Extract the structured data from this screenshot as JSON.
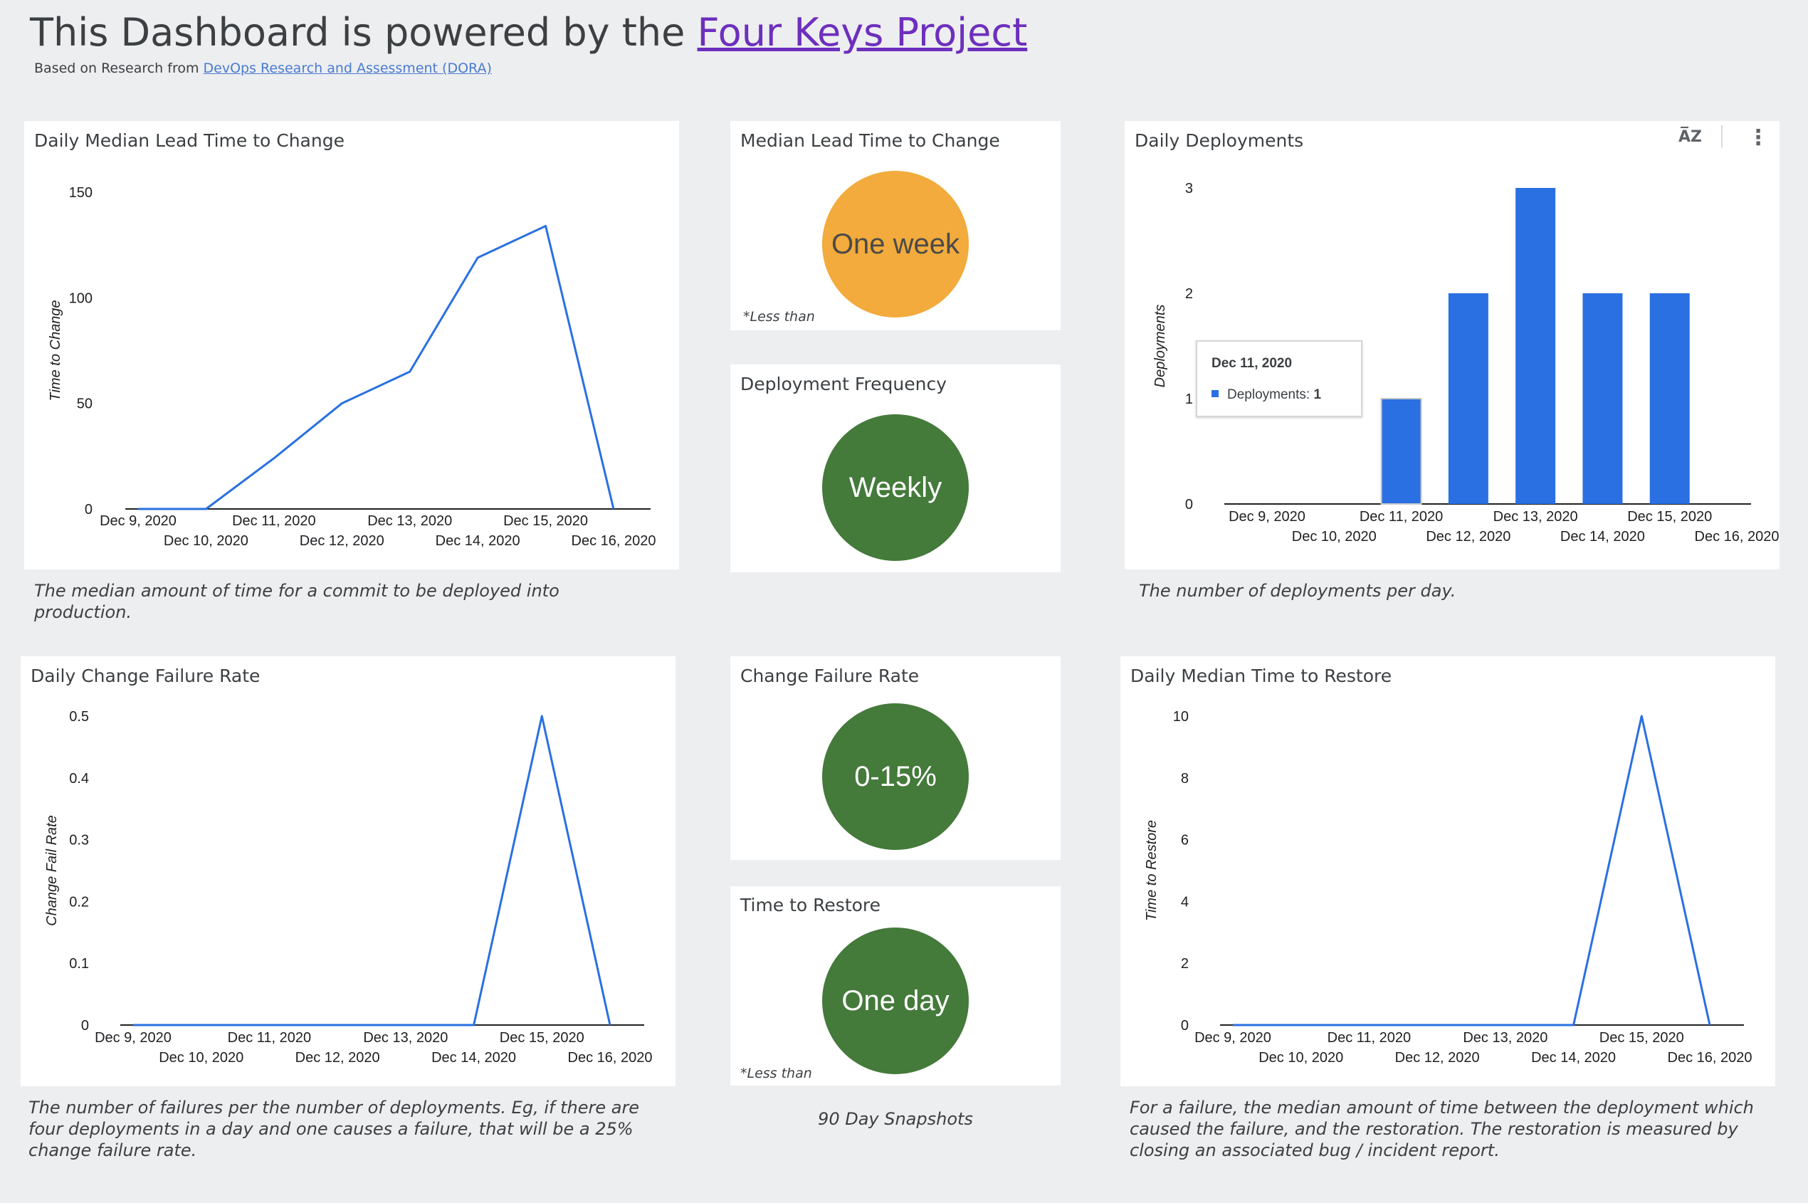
{
  "header": {
    "title_prefix": "This Dashboard is powered by the ",
    "title_link": "Four Keys Project",
    "subtitle_prefix": "Based on Research from ",
    "subtitle_link": "DevOps Research and Assessment (DORA)"
  },
  "colors": {
    "series": "#2a70e2",
    "orange": "#f2ab3c",
    "green": "#447a3a",
    "background": "#edeef0"
  },
  "scorecards": {
    "lead_time": {
      "title": "Median Lead Time to Change",
      "value": "One week",
      "note": "*Less than",
      "color": "#f2ab3c",
      "text_color": "#4a4a4a"
    },
    "deploy_freq": {
      "title": "Deployment Frequency",
      "value": "Weekly",
      "color": "#447a3a",
      "text_color": "#ffffff"
    },
    "cfr": {
      "title": "Change Failure Rate",
      "value": "0-15%",
      "color": "#447a3a",
      "text_color": "#ffffff"
    },
    "ttr": {
      "title": "Time to Restore",
      "value": "One day",
      "note": "*Less than",
      "color": "#447a3a",
      "text_color": "#ffffff"
    },
    "snapshot_label": "90 Day Snapshots"
  },
  "captions": {
    "lead_time": "The median amount of time for a commit to be deployed into production.",
    "deployments": "The number of deployments per day.",
    "cfr": "The number of failures per the number of deployments. Eg, if there are four deployments in a day and one causes a failure, that will be a 25% change failure rate.",
    "ttr": "For a failure, the median amount of time between the deployment which caused the failure, and the restoration. The restoration is measured by closing an associated bug / incident report."
  },
  "tooltip": {
    "date": "Dec 11, 2020",
    "label": "Deployments: ",
    "value": "1"
  },
  "icons": {
    "sort": "sort-az-icon",
    "menu": "more-vert-icon"
  },
  "chart_data": [
    {
      "id": "lead_time",
      "type": "line",
      "title": "Daily Median Lead Time to Change",
      "ylabel": "Time to Change",
      "xlabel": "",
      "x": [
        "Dec 9, 2020",
        "Dec 10, 2020",
        "Dec 11, 2020",
        "Dec 12, 2020",
        "Dec 13, 2020",
        "Dec 14, 2020",
        "Dec 15, 2020",
        "Dec 16, 2020"
      ],
      "values": [
        0,
        0,
        24,
        50,
        65,
        119,
        134,
        0
      ],
      "ylim": [
        0,
        150
      ],
      "yticks": [
        0,
        50,
        100,
        150
      ],
      "yticks_text": [
        "0",
        "50",
        "100",
        "150"
      ],
      "grid": false
    },
    {
      "id": "deployments",
      "type": "bar",
      "title": "Daily Deployments",
      "ylabel": "Deployments",
      "xlabel": "",
      "x": [
        "Dec 9, 2020",
        "Dec 10, 2020",
        "Dec 11, 2020",
        "Dec 12, 2020",
        "Dec 13, 2020",
        "Dec 14, 2020",
        "Dec 15, 2020",
        "Dec 16, 2020"
      ],
      "values": [
        0,
        0,
        1,
        2,
        3,
        2,
        2,
        0
      ],
      "ylim": [
        0,
        3
      ],
      "yticks": [
        0,
        1,
        2,
        3
      ],
      "yticks_text": [
        "0",
        "1",
        "2",
        "3"
      ],
      "grid": false
    },
    {
      "id": "cfr",
      "type": "line",
      "title": "Daily Change Failure Rate",
      "ylabel": "Change Fail Rate",
      "xlabel": "",
      "x": [
        "Dec 9, 2020",
        "Dec 10, 2020",
        "Dec 11, 2020",
        "Dec 12, 2020",
        "Dec 13, 2020",
        "Dec 14, 2020",
        "Dec 15, 2020",
        "Dec 16, 2020"
      ],
      "values": [
        0,
        0,
        0,
        0,
        0,
        0,
        0.5,
        0
      ],
      "ylim": [
        0,
        0.5
      ],
      "yticks": [
        0,
        0.1,
        0.2,
        0.3,
        0.4,
        0.5
      ],
      "yticks_text": [
        "0",
        "0.1",
        "0.2",
        "0.3",
        "0.4",
        "0.5"
      ],
      "grid": false
    },
    {
      "id": "ttr",
      "type": "line",
      "title": "Daily Median Time to Restore",
      "ylabel": "Time to Restore",
      "xlabel": "",
      "x": [
        "Dec 9, 2020",
        "Dec 10, 2020",
        "Dec 11, 2020",
        "Dec 12, 2020",
        "Dec 13, 2020",
        "Dec 14, 2020",
        "Dec 15, 2020",
        "Dec 16, 2020"
      ],
      "values": [
        0,
        0,
        0,
        0,
        0,
        0,
        10,
        0
      ],
      "ylim": [
        0,
        10
      ],
      "yticks": [
        0,
        2,
        4,
        6,
        8,
        10
      ],
      "yticks_text": [
        "0",
        "2",
        "4",
        "6",
        "8",
        "10"
      ],
      "grid": false
    }
  ]
}
